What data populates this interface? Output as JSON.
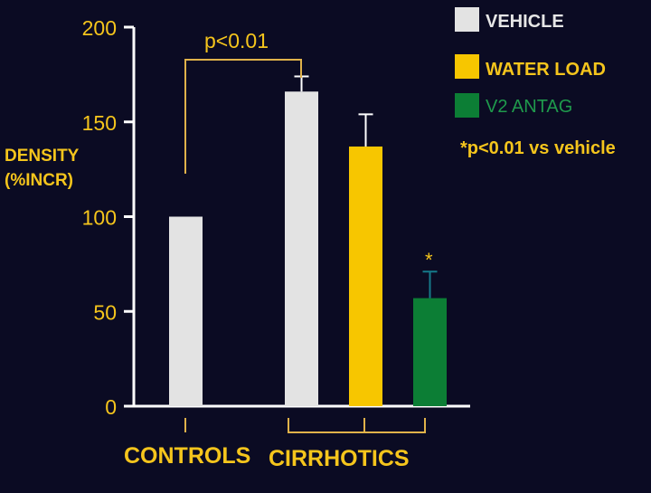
{
  "chart_data": {
    "type": "bar",
    "ylabel": "DENSITY\n(%INCR)",
    "ylim": [
      0,
      200
    ],
    "yticks": [
      "0",
      "50",
      "100",
      "150",
      "200"
    ],
    "groups": [
      "CONTROLS",
      "CIRRHOTICS"
    ],
    "legend_position": "top-right",
    "legend": [
      {
        "label": "VEHICLE",
        "color": "#e3e3e3"
      },
      {
        "label": "WATER LOAD",
        "color": "#f7c600"
      },
      {
        "label": "V2 ANTAG",
        "color": "#0c7e35"
      }
    ],
    "bars": [
      {
        "group": "CONTROLS",
        "series": "VEHICLE",
        "value": 100,
        "error": null,
        "color": "#e3e3e3"
      },
      {
        "group": "CIRRHOTICS",
        "series": "VEHICLE",
        "value": 166,
        "error": 8,
        "color": "#e3e3e3"
      },
      {
        "group": "CIRRHOTICS",
        "series": "WATER LOAD",
        "value": 137,
        "error": 17,
        "color": "#f7c600"
      },
      {
        "group": "CIRRHOTICS",
        "series": "V2 ANTAG",
        "value": 57,
        "error": 14,
        "color": "#0c7e35"
      }
    ],
    "annotations": {
      "bracket_label": "p<0.01",
      "star": "*",
      "footnote": "*p<0.01 vs vehicle"
    }
  },
  "colors": {
    "background": "#0b0b23",
    "axis": "#ffffff",
    "text": "#f5c51c",
    "bracket": "#e0b24a",
    "legend_v2_text": "#1f9a4c",
    "errorbar_v2": "#167a8a"
  }
}
